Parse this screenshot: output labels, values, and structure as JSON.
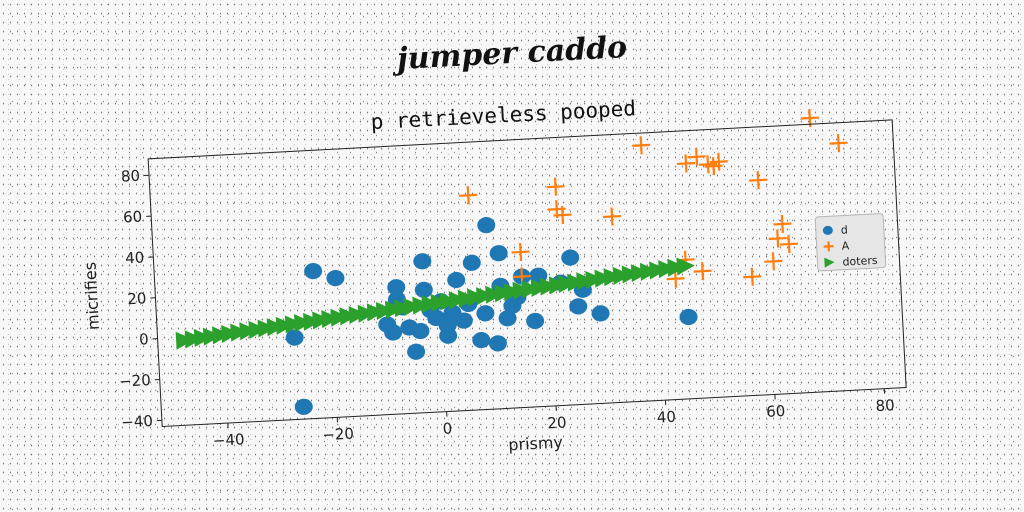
{
  "figure": {
    "title": "jumper caddo"
  },
  "chart_data": {
    "type": "scatter",
    "title": "p retrieveless pooped",
    "xlabel": "prismy",
    "ylabel": "micrifies",
    "xlim": [
      -52,
      84
    ],
    "ylim": [
      -43,
      88
    ],
    "xticks": [
      -40,
      -20,
      0,
      20,
      40,
      60,
      80
    ],
    "yticks": [
      -40,
      -20,
      0,
      20,
      40,
      60,
      80
    ],
    "grid": false,
    "legend_position": "right",
    "series": [
      {
        "name": "d",
        "marker": "circle",
        "color": "#1f77b4",
        "points": [
          [
            -27,
            -3
          ],
          [
            -26,
            -37
          ],
          [
            -23,
            29
          ],
          [
            -19,
            25
          ],
          [
            -10,
            1
          ],
          [
            -9,
            -3
          ],
          [
            -8,
            13
          ],
          [
            -8,
            19
          ],
          [
            -7,
            9
          ],
          [
            -6,
            -1
          ],
          [
            -5,
            -13
          ],
          [
            -4,
            -3
          ],
          [
            -3,
            17
          ],
          [
            -3,
            31
          ],
          [
            -2,
            7
          ],
          [
            -1,
            3
          ],
          [
            0,
            11
          ],
          [
            1,
            -1
          ],
          [
            1,
            -6
          ],
          [
            2,
            5
          ],
          [
            3,
            21
          ],
          [
            4,
            1
          ],
          [
            5,
            9
          ],
          [
            6,
            29
          ],
          [
            7,
            -9
          ],
          [
            8,
            4
          ],
          [
            9,
            47
          ],
          [
            10,
            -11
          ],
          [
            11,
            33
          ],
          [
            11,
            17
          ],
          [
            12,
            1
          ],
          [
            13,
            7
          ],
          [
            14,
            11
          ],
          [
            15,
            21
          ],
          [
            17,
            -1
          ],
          [
            18,
            21
          ],
          [
            22,
            17
          ],
          [
            24,
            29
          ],
          [
            25,
            5
          ],
          [
            26,
            13
          ],
          [
            29,
            1
          ],
          [
            45,
            -3
          ]
        ]
      },
      {
        "name": "A",
        "marker": "plus",
        "color": "#ff7f0e",
        "points": [
          [
            6,
            62
          ],
          [
            15,
            33
          ],
          [
            15,
            21
          ],
          [
            22,
            64
          ],
          [
            22,
            53
          ],
          [
            23,
            50
          ],
          [
            32,
            48
          ],
          [
            38,
            82
          ],
          [
            43,
            16
          ],
          [
            45,
            25
          ],
          [
            46,
            72
          ],
          [
            48,
            75
          ],
          [
            50,
            71
          ],
          [
            51,
            70
          ],
          [
            52,
            72
          ],
          [
            57,
            15
          ],
          [
            59,
            62
          ],
          [
            61,
            22
          ],
          [
            62,
            33
          ],
          [
            63,
            40
          ],
          [
            64,
            30
          ],
          [
            69,
            91
          ],
          [
            74,
            78
          ],
          [
            48,
            19
          ]
        ]
      },
      {
        "name": "doters",
        "marker": "triangle-right",
        "color": "#2ca02c",
        "x_start": -47,
        "x_end": 45,
        "count": 56,
        "intercept": 10.5,
        "slope": 0.255
      }
    ]
  }
}
